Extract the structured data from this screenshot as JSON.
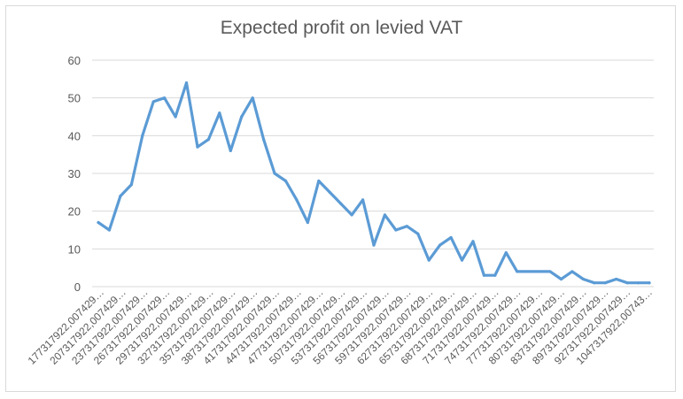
{
  "chart_data": {
    "type": "line",
    "title": "Expected profit on levied VAT",
    "xlabel": "",
    "ylabel": "",
    "ylim": [
      0,
      60
    ],
    "yticks": [
      0,
      10,
      20,
      30,
      40,
      50,
      60
    ],
    "grid": true,
    "line_color": "#5b9bd5",
    "x_tick_labels": [
      "177317922,007429…",
      "207317922,007429…",
      "237317922,007429…",
      "267317922,007429…",
      "297317922,007429…",
      "327317922,007429…",
      "357317922,007429…",
      "387317922,007429…",
      "417317922,007429…",
      "447317922,007429…",
      "477317922,007429…",
      "507317922,007429…",
      "537317922,007429…",
      "567317922,007429…",
      "597317922,007429…",
      "627317922,007429…",
      "657317922,007429…",
      "687317922,007429…",
      "717317922,007429…",
      "747317922,007429…",
      "777317922,007429…",
      "807317922,007429…",
      "837317922,007429…",
      "897317922,007429…",
      "927317922,007429…",
      "1047317922,00743…"
    ],
    "series": [
      {
        "values": [
          17,
          15,
          24,
          27,
          40,
          49,
          50,
          45,
          54,
          37,
          39,
          46,
          36,
          45,
          50,
          39,
          30,
          28,
          23,
          17,
          28,
          25,
          22,
          19,
          23,
          11,
          19,
          15,
          16,
          14,
          7,
          11,
          13,
          7,
          12,
          3,
          3,
          9,
          4,
          4,
          4,
          4,
          2,
          4,
          2,
          1,
          1,
          2,
          1,
          1,
          1
        ]
      }
    ]
  }
}
